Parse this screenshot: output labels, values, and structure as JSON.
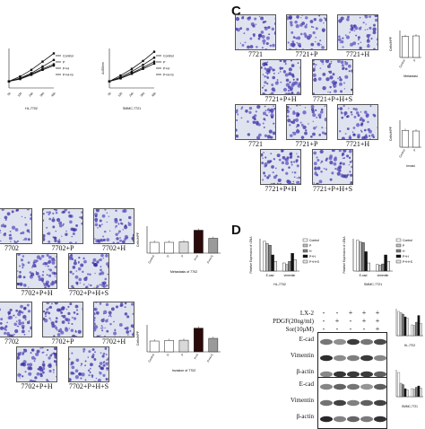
{
  "panel_labels": {
    "c": "C",
    "d": "D"
  },
  "legend_growth": [
    "Control",
    "P",
    "P+H",
    "P+H+S"
  ],
  "growth_charts": [
    {
      "id": "g1",
      "xlabel": "HL-7702",
      "xticks": [
        "0h",
        "12h",
        "24h",
        "36h",
        "48h"
      ],
      "series": [
        {
          "name": "Control",
          "values": [
            0.2,
            0.35,
            0.55,
            0.8,
            1.05
          ]
        },
        {
          "name": "P",
          "values": [
            0.2,
            0.3,
            0.45,
            0.65,
            0.85
          ]
        },
        {
          "name": "P+H",
          "values": [
            0.2,
            0.28,
            0.42,
            0.58,
            0.72
          ]
        },
        {
          "name": "P+H+S",
          "values": [
            0.2,
            0.27,
            0.4,
            0.55,
            0.68
          ]
        }
      ]
    },
    {
      "id": "g2",
      "xlabel": "SMMC-7721",
      "ylabel": "A450nm",
      "xticks": [
        "0h",
        "12h",
        "24h",
        "36h",
        "48h"
      ],
      "series": [
        {
          "name": "Control",
          "values": [
            0.2,
            0.38,
            0.58,
            0.82,
            1.1
          ]
        },
        {
          "name": "P",
          "values": [
            0.2,
            0.33,
            0.5,
            0.7,
            0.92
          ]
        },
        {
          "name": "P+H",
          "values": [
            0.2,
            0.3,
            0.45,
            0.62,
            0.8
          ]
        },
        {
          "name": "P+H+S",
          "values": [
            0.2,
            0.29,
            0.43,
            0.58,
            0.74
          ]
        }
      ]
    }
  ],
  "c_mig_labels": [
    "7721",
    "7721+P",
    "7721+H",
    "7721+P+H",
    "7721+P+H+S"
  ],
  "c_inv_labels": [
    "7721",
    "7721+P",
    "7721+H",
    "7721+P+H",
    "7721+P+H+S"
  ],
  "b_mig_labels": [
    "7702",
    "7702+P",
    "7702+H",
    "7702+P+H",
    "7702+P+H+S"
  ],
  "b_inv_labels": [
    "7702",
    "7702+P",
    "7702+H",
    "7702+P+H",
    "7702+P+H+S"
  ],
  "c_mig_chart": {
    "ylabel": "Cells/HPF",
    "xlabel": "Metastasi",
    "categories": [
      "Control",
      "P"
    ],
    "values": [
      0.78,
      0.8
    ]
  },
  "c_inv_chart": {
    "ylabel": "Cells/HPF",
    "xlabel": "Invasi",
    "categories": [
      "Control",
      "P"
    ],
    "values": [
      0.62,
      0.6
    ]
  },
  "b_mig_chart": {
    "ylabel": "Cells/HPF",
    "xlabel": "Metastasis of 7702",
    "categories": [
      "Control",
      "H",
      "P",
      "P+H",
      "P+H+S"
    ],
    "values": [
      0.4,
      0.4,
      0.42,
      0.85,
      0.55
    ]
  },
  "b_inv_chart": {
    "ylabel": "Cells/HPF",
    "xlabel": "Invasion of 7702",
    "categories": [
      "Control",
      "H",
      "P",
      "P+H",
      "P+H+S"
    ],
    "values": [
      0.4,
      0.42,
      0.43,
      0.88,
      0.5
    ]
  },
  "d_legend": [
    "Control",
    "P",
    "H",
    "P+H",
    "P+H+S"
  ],
  "d_charts": [
    {
      "ylabel": "Relative Expression of cDNA",
      "xlabel": "HL-7702",
      "groups": [
        "E-cad",
        "vimentin"
      ],
      "values": [
        [
          0.92,
          0.85,
          0.8,
          0.5,
          0.3
        ],
        [
          0.25,
          0.2,
          0.3,
          0.55,
          0.35
        ]
      ]
    },
    {
      "ylabel": "Relative Expression of cDNA",
      "xlabel": "SMMC-7721",
      "groups": [
        "E-cad",
        "vimentin"
      ],
      "values": [
        [
          0.95,
          0.9,
          0.88,
          0.6,
          0.25
        ],
        [
          0.2,
          0.18,
          0.22,
          0.5,
          0.3
        ]
      ]
    }
  ],
  "wb_conditions": [
    "LX-2",
    "PDGF(20ng/ml)",
    "Sor(10μM)"
  ],
  "wb_signs": [
    [
      "-",
      "-",
      "+",
      "+",
      "+"
    ],
    [
      "-",
      "+",
      "-",
      "+",
      "+"
    ],
    [
      "-",
      "-",
      "-",
      "-",
      "+"
    ]
  ],
  "wb1_rows": [
    "E-cad",
    "Vimentin",
    "β-actin"
  ],
  "wb2_rows": [
    "E-cad",
    "Vimentin",
    "β-actin"
  ],
  "wb1_quant": {
    "xlabel": "HL-7702",
    "values": [
      [
        0.9,
        0.85,
        0.8,
        0.7,
        0.65
      ],
      [
        0.4,
        0.38,
        0.5,
        0.75,
        0.45
      ]
    ]
  },
  "wb2_quant": {
    "xlabel": "SMMC-7721",
    "values": [
      [
        0.9,
        0.5,
        0.45,
        0.3,
        0.25
      ],
      [
        0.3,
        0.28,
        0.35,
        0.4,
        0.32
      ]
    ]
  }
}
